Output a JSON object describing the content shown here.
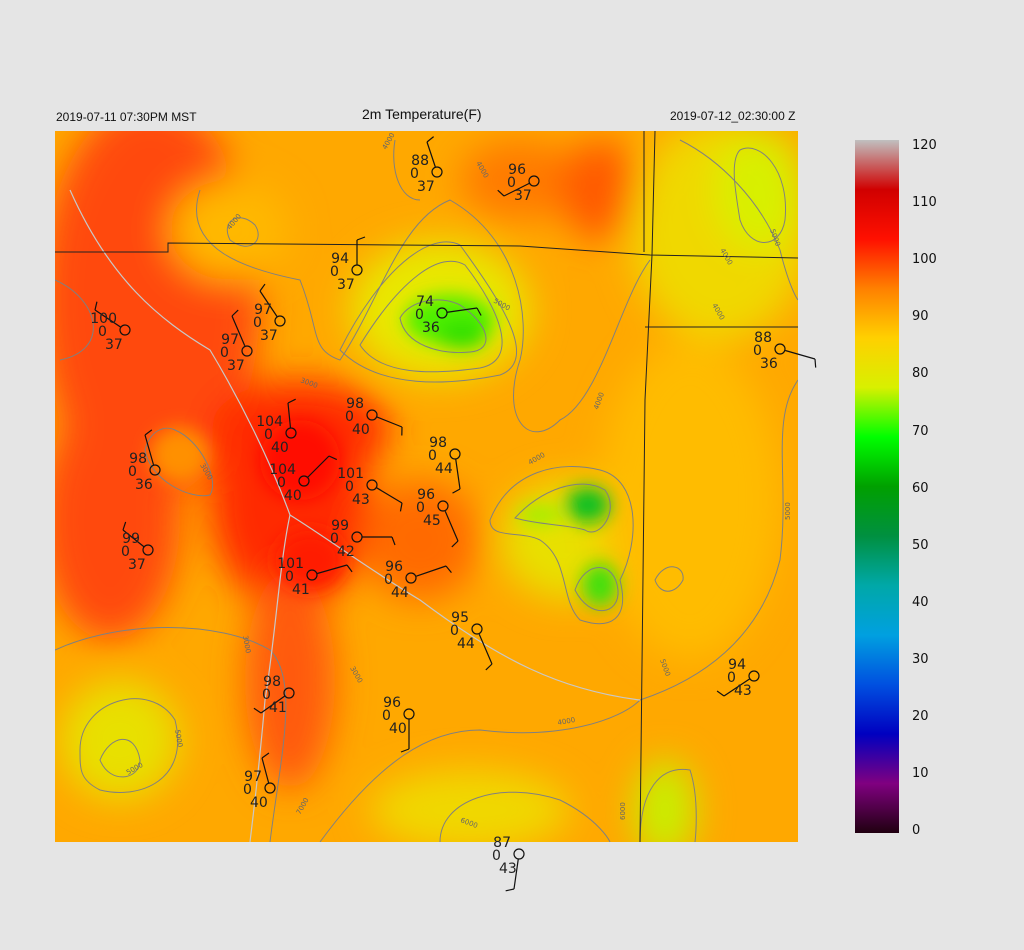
{
  "header": {
    "local_time": "2019-07-11 07:30PM MST",
    "title": "2m Temperature(F)",
    "utc_time": "2019-07-12_02:30:00 Z"
  },
  "colorbar": {
    "ticks": [
      "120",
      "110",
      "100",
      "90",
      "80",
      "70",
      "60",
      "50",
      "40",
      "30",
      "20",
      "10",
      "0"
    ],
    "range": [
      0,
      120
    ],
    "colors": [
      "#200010",
      "#800080",
      "#0000c0",
      "#0050e0",
      "#00a0e0",
      "#00a8a8",
      "#009040",
      "#00a000",
      "#00ff00",
      "#d8f000",
      "#ffd000",
      "#ff8000",
      "#ff1000",
      "#d00000",
      "#c0c0c0"
    ]
  },
  "contours": {
    "labels": [
      "3000",
      "3000",
      "3000",
      "3000",
      "4000",
      "4000",
      "4000",
      "4000",
      "4000",
      "4000",
      "4000",
      "4000",
      "5000",
      "5000",
      "5000",
      "5000",
      "5000",
      "5000",
      "6000",
      "6000",
      "7000"
    ]
  },
  "stations": [
    {
      "t": "88",
      "m": "0",
      "d": "37"
    },
    {
      "t": "96",
      "m": "0",
      "d": "37"
    },
    {
      "t": "94",
      "m": "0",
      "d": "37"
    },
    {
      "t": "74",
      "m": "0",
      "d": "36"
    },
    {
      "t": "100",
      "m": "0",
      "d": "37"
    },
    {
      "t": "97",
      "m": "0",
      "d": "37"
    },
    {
      "t": "97",
      "m": "0",
      "d": "37"
    },
    {
      "t": "88",
      "m": "0",
      "d": "36"
    },
    {
      "t": "98",
      "m": "0",
      "d": "40"
    },
    {
      "t": "104",
      "m": "0",
      "d": "40"
    },
    {
      "t": "98",
      "m": "0",
      "d": "44"
    },
    {
      "t": "98",
      "m": "0",
      "d": "36"
    },
    {
      "t": "104",
      "m": "0",
      "d": "40"
    },
    {
      "t": "101",
      "m": "0",
      "d": "43"
    },
    {
      "t": "96",
      "m": "0",
      "d": "45"
    },
    {
      "t": "99",
      "m": "0",
      "d": "37"
    },
    {
      "t": "99",
      "m": "0",
      "d": "42"
    },
    {
      "t": "101",
      "m": "0",
      "d": "41"
    },
    {
      "t": "96",
      "m": "0",
      "d": "44"
    },
    {
      "t": "95",
      "m": "0",
      "d": "44"
    },
    {
      "t": "98",
      "m": "0",
      "d": "41"
    },
    {
      "t": "94",
      "m": "0",
      "d": "43"
    },
    {
      "t": "96",
      "m": "0",
      "d": "40"
    },
    {
      "t": "97",
      "m": "0",
      "d": "40"
    },
    {
      "t": "87",
      "m": "0",
      "d": "43"
    }
  ]
}
